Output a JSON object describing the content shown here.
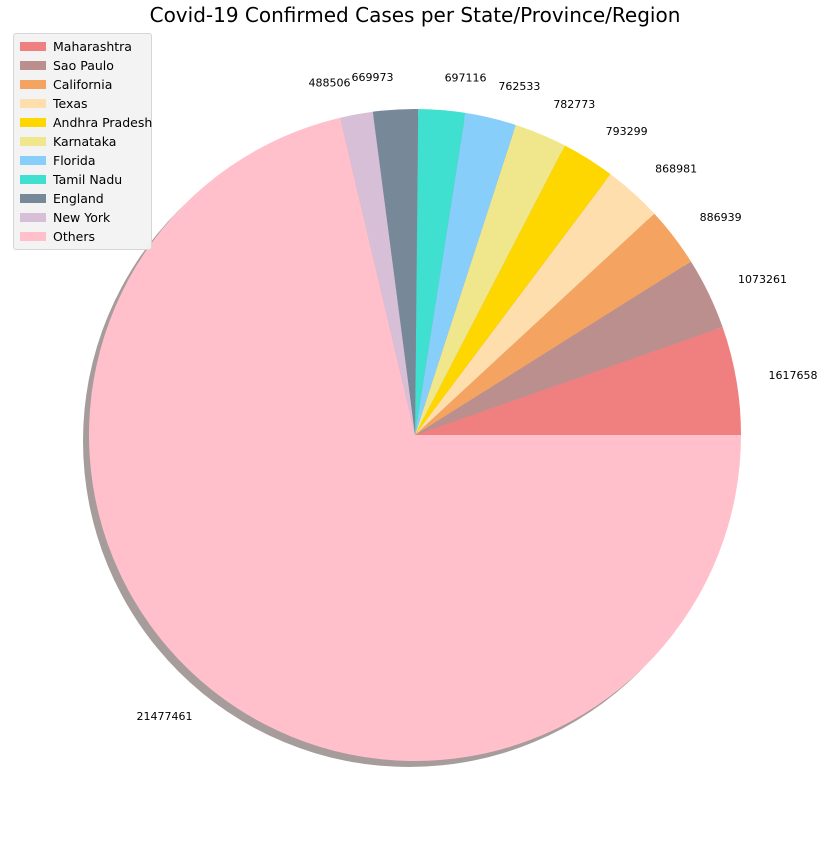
{
  "chart_data": {
    "type": "pie",
    "title": "Covid-19 Confirmed Cases per State/Province/Region",
    "legend_position": "top-left",
    "shadow": true,
    "start_angle_deg": 0,
    "direction": "counterclockwise",
    "slices": [
      {
        "label": "Maharashtra",
        "value": 1617658,
        "color": "#f08080"
      },
      {
        "label": "Sao Paulo",
        "value": 1073261,
        "color": "#bc8f8f"
      },
      {
        "label": "California",
        "value": 886939,
        "color": "#f4a460"
      },
      {
        "label": "Texas",
        "value": 868981,
        "color": "#ffdead"
      },
      {
        "label": "Andhra Pradesh",
        "value": 793299,
        "color": "#ffd700"
      },
      {
        "label": "Karnataka",
        "value": 782773,
        "color": "#f0e68c"
      },
      {
        "label": "Florida",
        "value": 762533,
        "color": "#87cefa"
      },
      {
        "label": "Tamil Nadu",
        "value": 697116,
        "color": "#40e0d0"
      },
      {
        "label": "England",
        "value": 669973,
        "color": "#778899"
      },
      {
        "label": "New York",
        "value": 488506,
        "color": "#d8bfd8"
      },
      {
        "label": "Others",
        "value": 21477461,
        "color": "#ffc0cb"
      }
    ]
  }
}
